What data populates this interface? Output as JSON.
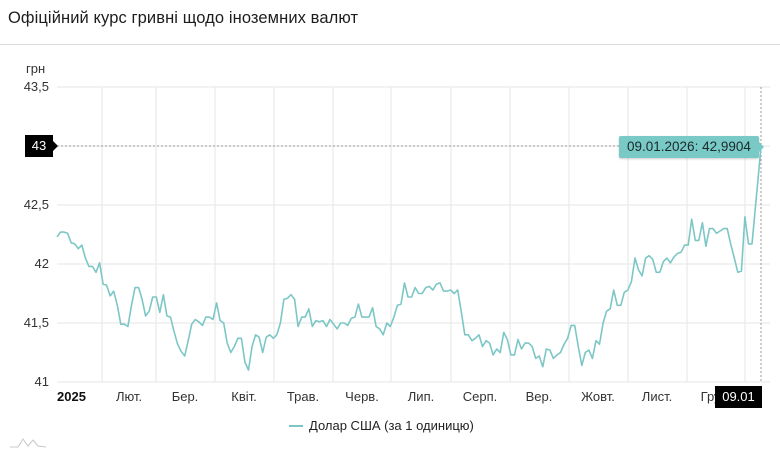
{
  "header": {
    "title": "Офіційний курс гривні щодо іноземних валют"
  },
  "axis": {
    "unit": "грн",
    "y_ticks": [
      "43,5",
      "43",
      "42,5",
      "42",
      "41,5",
      "41"
    ],
    "x_ticks": [
      "2025",
      "Лют.",
      "Бер.",
      "Квіт.",
      "Трав.",
      "Черв.",
      "Лип.",
      "Серп.",
      "Вер.",
      "Жовт.",
      "Лист.",
      "Груд."
    ]
  },
  "cursor": {
    "y_label": "43",
    "x_label": "09.01",
    "tooltip": "09.01.2026: 42,9904"
  },
  "legend": {
    "series_label": "Долар США (за 1 одиницю)"
  },
  "colors": {
    "series": "#7cc7c6",
    "grid": "#e6e6e6",
    "cursor": "#000000",
    "tooltip_bg": "#79c9c6"
  },
  "chart_data": {
    "type": "line",
    "title": "Офіційний курс гривні щодо іноземних валют",
    "xlabel": "",
    "ylabel": "грн",
    "ylim": [
      41,
      43.5
    ],
    "grid": true,
    "legend_position": "bottom",
    "x_ticks": [
      "2025",
      "Лют.",
      "Бер.",
      "Квіт.",
      "Трав.",
      "Черв.",
      "Лип.",
      "Серп.",
      "Вер.",
      "Жовт.",
      "Лист.",
      "Груд.",
      "09.01"
    ],
    "series": [
      {
        "name": "Долар США (за 1 одиницю)",
        "points": [
          [
            "01.2025",
            42.23
          ],
          [
            "",
            42.27
          ],
          [
            "",
            42.27
          ],
          [
            "",
            42.26
          ],
          [
            "",
            42.18
          ],
          [
            "",
            42.17
          ],
          [
            "",
            42.13
          ],
          [
            "",
            42.16
          ],
          [
            "",
            42.05
          ],
          [
            "",
            41.98
          ],
          [
            "",
            41.98
          ],
          [
            "",
            41.93
          ],
          [
            "",
            42.01
          ],
          [
            "02.2025",
            41.83
          ],
          [
            "",
            41.82
          ],
          [
            "",
            41.73
          ],
          [
            "",
            41.77
          ],
          [
            "",
            41.65
          ],
          [
            "",
            41.49
          ],
          [
            "",
            41.49
          ],
          [
            "",
            41.47
          ],
          [
            "",
            41.65
          ],
          [
            "",
            41.8
          ],
          [
            "",
            41.8
          ],
          [
            "",
            41.7
          ],
          [
            "",
            41.56
          ],
          [
            "",
            41.6
          ],
          [
            "",
            41.72
          ],
          [
            "",
            41.72
          ],
          [
            "",
            41.59
          ],
          [
            "",
            41.74
          ],
          [
            "03.2025",
            41.56
          ],
          [
            "",
            41.55
          ],
          [
            "",
            41.43
          ],
          [
            "",
            41.32
          ],
          [
            "",
            41.26
          ],
          [
            "",
            41.22
          ],
          [
            "",
            41.35
          ],
          [
            "",
            41.49
          ],
          [
            "",
            41.53
          ],
          [
            "",
            41.51
          ],
          [
            "",
            41.48
          ],
          [
            "",
            41.55
          ],
          [
            "",
            41.55
          ],
          [
            "",
            41.53
          ],
          [
            "",
            41.67
          ],
          [
            "",
            41.52
          ],
          [
            "",
            41.5
          ],
          [
            "04.2025",
            41.33
          ],
          [
            "",
            41.25
          ],
          [
            "",
            41.3
          ],
          [
            "",
            41.37
          ],
          [
            "",
            41.37
          ],
          [
            "",
            41.17
          ],
          [
            "",
            41.1
          ],
          [
            "",
            41.3
          ],
          [
            "",
            41.4
          ],
          [
            "",
            41.38
          ],
          [
            "",
            41.25
          ],
          [
            "",
            41.38
          ],
          [
            "",
            41.4
          ],
          [
            "",
            41.37
          ],
          [
            "",
            41.4
          ],
          [
            "",
            41.5
          ],
          [
            "05.2025",
            41.7
          ],
          [
            "",
            41.71
          ],
          [
            "",
            41.74
          ],
          [
            "",
            41.7
          ],
          [
            "",
            41.47
          ],
          [
            "",
            41.55
          ],
          [
            "",
            41.55
          ],
          [
            "",
            41.62
          ],
          [
            "",
            41.47
          ],
          [
            "",
            41.52
          ],
          [
            "",
            41.51
          ],
          [
            "",
            41.52
          ],
          [
            "",
            41.47
          ],
          [
            "",
            41.53
          ],
          [
            "",
            41.49
          ],
          [
            "",
            41.45
          ],
          [
            "06.2025",
            41.5
          ],
          [
            "",
            41.5
          ],
          [
            "",
            41.48
          ],
          [
            "",
            41.54
          ],
          [
            "",
            41.55
          ],
          [
            "",
            41.66
          ],
          [
            "",
            41.55
          ],
          [
            "",
            41.55
          ],
          [
            "",
            41.55
          ],
          [
            "",
            41.63
          ],
          [
            "",
            41.47
          ],
          [
            "",
            41.45
          ],
          [
            "",
            41.4
          ],
          [
            "",
            41.5
          ],
          [
            "",
            41.47
          ],
          [
            "",
            41.55
          ],
          [
            "07.2025",
            41.65
          ],
          [
            "",
            41.66
          ],
          [
            "",
            41.84
          ],
          [
            "",
            41.72
          ],
          [
            "",
            41.72
          ],
          [
            "",
            41.8
          ],
          [
            "",
            41.75
          ],
          [
            "",
            41.75
          ],
          [
            "",
            41.8
          ],
          [
            "",
            41.81
          ],
          [
            "",
            41.78
          ],
          [
            "",
            41.83
          ],
          [
            "",
            41.84
          ],
          [
            "",
            41.77
          ],
          [
            "",
            41.77
          ],
          [
            "",
            41.78
          ],
          [
            "08.2025",
            41.75
          ],
          [
            "",
            41.78
          ],
          [
            "",
            41.6
          ],
          [
            "",
            41.4
          ],
          [
            "",
            41.4
          ],
          [
            "",
            41.35
          ],
          [
            "",
            41.37
          ],
          [
            "",
            41.4
          ],
          [
            "",
            41.3
          ],
          [
            "",
            41.35
          ],
          [
            "",
            41.33
          ],
          [
            "",
            41.23
          ],
          [
            "",
            41.28
          ],
          [
            "",
            41.25
          ],
          [
            "",
            41.42
          ],
          [
            "",
            41.36
          ],
          [
            "09.2025",
            41.23
          ],
          [
            "",
            41.23
          ],
          [
            "",
            41.36
          ],
          [
            "",
            41.28
          ],
          [
            "",
            41.33
          ],
          [
            "",
            41.33
          ],
          [
            "",
            41.3
          ],
          [
            "",
            41.2
          ],
          [
            "",
            41.22
          ],
          [
            "",
            41.13
          ],
          [
            "",
            41.28
          ],
          [
            "",
            41.27
          ],
          [
            "",
            41.2
          ],
          [
            "",
            41.23
          ],
          [
            "",
            41.25
          ],
          [
            "",
            41.32
          ],
          [
            "10.2025",
            41.37
          ],
          [
            "",
            41.48
          ],
          [
            "",
            41.48
          ],
          [
            "",
            41.3
          ],
          [
            "",
            41.14
          ],
          [
            "",
            41.25
          ],
          [
            "",
            41.27
          ],
          [
            "",
            41.2
          ],
          [
            "",
            41.35
          ],
          [
            "",
            41.32
          ],
          [
            "",
            41.5
          ],
          [
            "",
            41.6
          ],
          [
            "",
            41.62
          ],
          [
            "",
            41.78
          ],
          [
            "",
            41.65
          ],
          [
            "",
            41.65
          ],
          [
            "11.2025",
            41.76
          ],
          [
            "",
            41.78
          ],
          [
            "",
            41.85
          ],
          [
            "",
            42.05
          ],
          [
            "",
            41.95
          ],
          [
            "",
            41.9
          ],
          [
            "",
            42.05
          ],
          [
            "",
            42.07
          ],
          [
            "",
            42.04
          ],
          [
            "",
            41.93
          ],
          [
            "",
            41.93
          ],
          [
            "",
            42.02
          ],
          [
            "",
            42.05
          ],
          [
            "",
            42.01
          ],
          [
            "",
            42.06
          ],
          [
            "",
            42.09
          ],
          [
            "12.2025",
            42.1
          ],
          [
            "",
            42.16
          ],
          [
            "",
            42.16
          ],
          [
            "",
            42.38
          ],
          [
            "",
            42.2
          ],
          [
            "",
            42.2
          ],
          [
            "",
            42.35
          ],
          [
            "",
            42.15
          ],
          [
            "",
            42.3
          ],
          [
            "",
            42.3
          ],
          [
            "",
            42.26
          ],
          [
            "",
            42.28
          ],
          [
            "",
            42.3
          ],
          [
            "",
            42.3
          ],
          [
            "",
            42.17
          ],
          [
            "",
            42.05
          ],
          [
            "",
            41.93
          ],
          [
            "",
            41.94
          ],
          [
            "",
            42.4
          ],
          [
            "",
            42.17
          ],
          [
            "",
            42.17
          ],
          [
            "09.01.2026",
            42.9904
          ]
        ]
      }
    ]
  }
}
